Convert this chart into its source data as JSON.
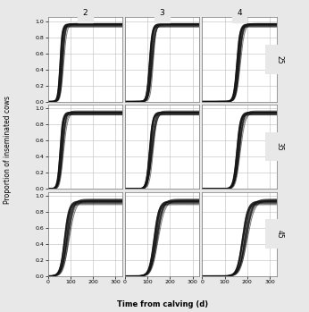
{
  "col_labels": [
    "2",
    "3",
    "4"
  ],
  "row_labels": [
    "25",
    "35",
    "45"
  ],
  "xlabel": "Time from calving (d)",
  "ylabel": "Proportion of inseminated cows",
  "xlim": [
    0,
    330
  ],
  "ylim": [
    0.0,
    1.05
  ],
  "xticks": [
    0,
    100,
    200,
    300
  ],
  "yticks": [
    0.0,
    0.2,
    0.4,
    0.6,
    0.8,
    1.0
  ],
  "background_color": "#e8e8e8",
  "plot_bg_color": "#ffffff",
  "grid_color": "#bbbbbb",
  "curve_color": "#111111",
  "n_curves_per_panel": 15,
  "curve_alpha": 0.55,
  "curve_lw": 0.7,
  "panels": {
    "25_2": {
      "centers": [
        55,
        65,
        60,
        58,
        62,
        67,
        53,
        70,
        56,
        64,
        59,
        61,
        66,
        54,
        63
      ],
      "widths": [
        5,
        6,
        4,
        5,
        6,
        5,
        4,
        7,
        5,
        6,
        5,
        4,
        6,
        5,
        5
      ],
      "maxvals": [
        0.96,
        0.97,
        0.95,
        0.94,
        0.97,
        0.96,
        0.93,
        0.96,
        0.95,
        0.97,
        0.94,
        0.96,
        0.95,
        0.93,
        0.96
      ]
    },
    "25_3": {
      "centers": [
        110,
        120,
        115,
        108,
        118,
        125,
        112,
        122,
        107,
        116,
        119,
        113,
        121,
        109,
        117
      ],
      "widths": [
        6,
        7,
        5,
        6,
        7,
        6,
        5,
        7,
        6,
        6,
        7,
        5,
        7,
        6,
        6
      ],
      "maxvals": [
        0.96,
        0.97,
        0.95,
        0.94,
        0.97,
        0.96,
        0.93,
        0.96,
        0.95,
        0.97,
        0.94,
        0.96,
        0.95,
        0.93,
        0.96
      ]
    },
    "25_4": {
      "centers": [
        155,
        165,
        160,
        158,
        162,
        167,
        153,
        170,
        156,
        164,
        159,
        161,
        166,
        154,
        163
      ],
      "widths": [
        7,
        8,
        6,
        7,
        8,
        7,
        6,
        9,
        7,
        8,
        7,
        6,
        8,
        7,
        7
      ],
      "maxvals": [
        0.96,
        0.97,
        0.95,
        0.94,
        0.97,
        0.96,
        0.93,
        0.96,
        0.95,
        0.97,
        0.94,
        0.96,
        0.95,
        0.93,
        0.96
      ]
    },
    "35_2": {
      "centers": [
        55,
        65,
        60,
        58,
        62,
        67,
        53,
        70,
        56,
        64,
        59,
        61,
        66,
        54,
        63
      ],
      "widths": [
        6,
        8,
        5,
        6,
        7,
        6,
        5,
        9,
        6,
        7,
        6,
        5,
        8,
        6,
        7
      ],
      "maxvals": [
        0.95,
        0.97,
        0.94,
        0.93,
        0.96,
        0.95,
        0.92,
        0.95,
        0.94,
        0.96,
        0.93,
        0.95,
        0.94,
        0.92,
        0.95
      ]
    },
    "35_3": {
      "centers": [
        110,
        120,
        115,
        108,
        118,
        125,
        112,
        122,
        107,
        116,
        119,
        113,
        121,
        109,
        117
      ],
      "widths": [
        7,
        9,
        6,
        7,
        9,
        8,
        6,
        10,
        7,
        8,
        8,
        6,
        9,
        7,
        8
      ],
      "maxvals": [
        0.95,
        0.97,
        0.94,
        0.93,
        0.96,
        0.95,
        0.92,
        0.95,
        0.94,
        0.96,
        0.93,
        0.95,
        0.94,
        0.92,
        0.95
      ]
    },
    "35_4": {
      "centers": [
        155,
        165,
        160,
        158,
        162,
        167,
        153,
        170,
        156,
        164,
        159,
        161,
        166,
        154,
        163
      ],
      "widths": [
        8,
        10,
        7,
        8,
        9,
        8,
        7,
        11,
        8,
        9,
        8,
        7,
        10,
        8,
        9
      ],
      "maxvals": [
        0.95,
        0.97,
        0.94,
        0.93,
        0.96,
        0.95,
        0.92,
        0.95,
        0.94,
        0.96,
        0.93,
        0.95,
        0.94,
        0.92,
        0.95
      ]
    },
    "45_2": {
      "centers": [
        75,
        88,
        82,
        79,
        85,
        92,
        72,
        95,
        77,
        86,
        81,
        83,
        90,
        74,
        87
      ],
      "widths": [
        10,
        13,
        9,
        10,
        12,
        11,
        9,
        14,
        10,
        12,
        11,
        9,
        13,
        10,
        12
      ],
      "maxvals": [
        0.93,
        0.96,
        0.92,
        0.91,
        0.95,
        0.94,
        0.9,
        0.94,
        0.92,
        0.95,
        0.91,
        0.93,
        0.93,
        0.89,
        0.94
      ]
    },
    "45_3": {
      "centers": [
        130,
        142,
        136,
        133,
        139,
        145,
        127,
        148,
        131,
        140,
        135,
        137,
        143,
        129,
        141
      ],
      "widths": [
        11,
        14,
        10,
        11,
        13,
        12,
        10,
        15,
        11,
        13,
        12,
        10,
        14,
        11,
        13
      ],
      "maxvals": [
        0.93,
        0.96,
        0.92,
        0.91,
        0.95,
        0.94,
        0.9,
        0.94,
        0.92,
        0.95,
        0.91,
        0.93,
        0.93,
        0.89,
        0.94
      ]
    },
    "45_4": {
      "centers": [
        180,
        195,
        188,
        183,
        191,
        198,
        177,
        201,
        182,
        193,
        187,
        189,
        196,
        179,
        194
      ],
      "widths": [
        12,
        15,
        11,
        12,
        14,
        13,
        11,
        16,
        12,
        14,
        13,
        11,
        15,
        12,
        14
      ],
      "maxvals": [
        0.93,
        0.96,
        0.92,
        0.91,
        0.95,
        0.94,
        0.9,
        0.94,
        0.92,
        0.95,
        0.91,
        0.93,
        0.93,
        0.89,
        0.94
      ]
    }
  }
}
